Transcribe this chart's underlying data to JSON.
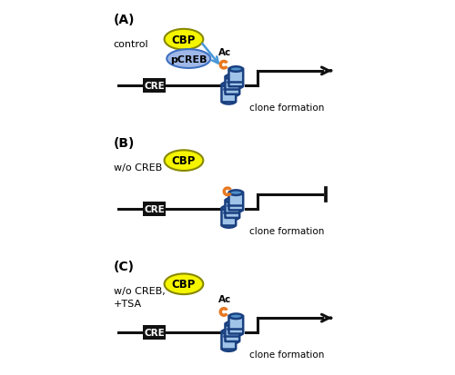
{
  "figsize": [
    5.0,
    4.14
  ],
  "dpi": 100,
  "bg_color": "#ffffff",
  "border_color": "#888888",
  "panels": [
    "A",
    "B",
    "C"
  ],
  "panel_labels": [
    "(A)",
    "(B)",
    "(C)"
  ],
  "panel_subtitles": [
    "control",
    "w/o CREB",
    "w/o CREB,\n+TSA"
  ],
  "clone_text": "clone formation",
  "cbp_color": "#f5f500",
  "cbp_border": "#888800",
  "pcreb_color": "#a0b8e8",
  "pcreb_border": "#4070c0",
  "cre_fill": "#111111",
  "cre_text_color": "#ffffff",
  "histone_light": "#a0c4e8",
  "histone_dark": "#5090c8",
  "histone_border": "#1a4080",
  "ac_color": "#e87820",
  "arrow_color": "#4898d8",
  "line_color": "#111111",
  "line_lw": 2.2
}
